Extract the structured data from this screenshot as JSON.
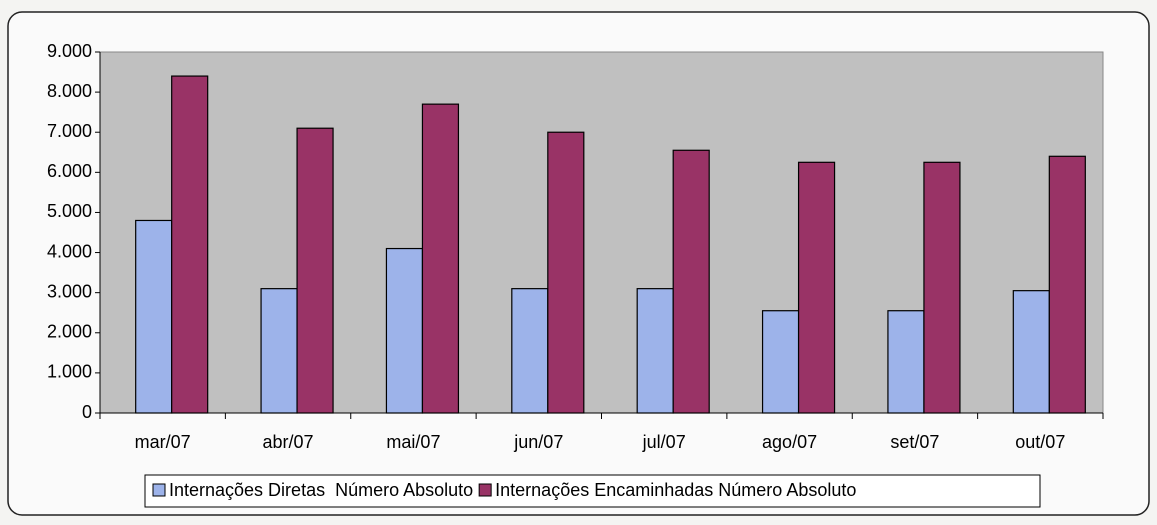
{
  "chart_data": {
    "type": "bar",
    "categories": [
      "mar/07",
      "abr/07",
      "mai/07",
      "jun/07",
      "jul/07",
      "ago/07",
      "set/07",
      "out/07"
    ],
    "series": [
      {
        "name": "Internações Diretas  Número Absoluto",
        "color": "#9db3ea",
        "values": [
          4800,
          3100,
          4100,
          3100,
          3100,
          2550,
          2550,
          3050
        ]
      },
      {
        "name": "Internações Encaminhadas Número Absoluto",
        "color": "#993366",
        "values": [
          8400,
          7100,
          7700,
          7000,
          6550,
          6250,
          6250,
          6400
        ]
      }
    ],
    "ylim": [
      0,
      9000
    ],
    "yticks": [
      0,
      {
        "value": 1000,
        "label": "1.000"
      },
      {
        "value": 2000,
        "label": "2.000"
      },
      {
        "value": 3000,
        "label": "3.000"
      },
      {
        "value": 4000,
        "label": "4.000"
      },
      {
        "value": 5000,
        "label": "5.000"
      },
      {
        "value": 6000,
        "label": "6.000"
      },
      {
        "value": 7000,
        "label": "7.000"
      },
      {
        "value": 8000,
        "label": "8.000"
      },
      {
        "value": 9000,
        "label": "9.000"
      }
    ],
    "grid": false,
    "legend": "bottom"
  }
}
